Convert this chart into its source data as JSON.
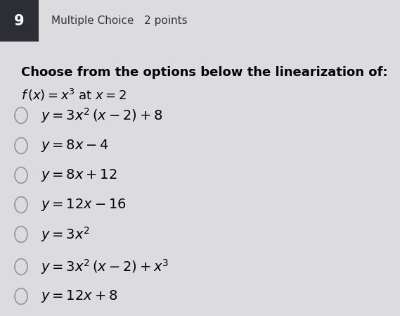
{
  "bg_color": "#dcdce0",
  "header_box_color": "#2d2d35",
  "header_number": "9",
  "header_label": "Multiple Choice   2 points",
  "q_line1": "Choose from the options below the linearization of:",
  "q_line2": "$f\\,(x) = x^3$ at $x = 2$",
  "options": [
    "$y = 3x^2\\,(x - 2) + 8$",
    "$y = 8x - 4$",
    "$y = 8x + 12$",
    "$y = 12x - 16$",
    "$y = 3x^2$",
    "$y = 3x^2\\,(x - 2) + x^3$",
    "$y = 12x + 8$"
  ],
  "header_fontsize": 11,
  "question_fontsize": 13,
  "option_fontsize": 14,
  "header_number_fontsize": 15
}
